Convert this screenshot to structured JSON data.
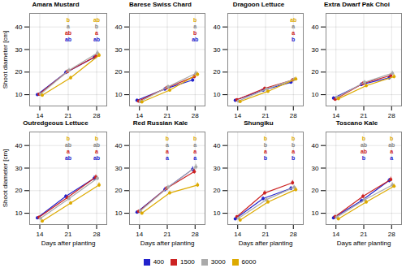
{
  "chart_data": [
    {
      "type": "line",
      "title": "Amara Mustard",
      "x": [
        14,
        21,
        28
      ],
      "series": [
        {
          "name": "400",
          "color": "#2222cc",
          "values": [
            10.0,
            19.8,
            26.5
          ],
          "err": [
            0.5,
            0.8,
            1.0
          ]
        },
        {
          "name": "1500",
          "color": "#cc2222",
          "values": [
            10.2,
            20.2,
            27.0
          ],
          "err": [
            0.5,
            0.8,
            1.0
          ]
        },
        {
          "name": "3000",
          "color": "#aaaaaa",
          "values": [
            10.3,
            20.8,
            28.5
          ],
          "err": [
            0.5,
            0.9,
            1.0
          ]
        },
        {
          "name": "6000",
          "color": "#ddaa00",
          "values": [
            9.8,
            17.5,
            27.5
          ],
          "err": [
            0.5,
            0.8,
            0.9
          ]
        }
      ],
      "annotations": [
        {
          "text": "b",
          "x": 21,
          "color": "#ddaa00"
        },
        {
          "text": "a",
          "x": 21,
          "color": "#888888"
        },
        {
          "text": "ab",
          "x": 21,
          "color": "#cc2222"
        },
        {
          "text": "ab",
          "x": 21,
          "color": "#2222cc"
        },
        {
          "text": "ab",
          "x": 28,
          "color": "#ddaa00"
        },
        {
          "text": "b",
          "x": 28,
          "color": "#888888"
        },
        {
          "text": "a",
          "x": 28,
          "color": "#cc2222"
        },
        {
          "text": "ab",
          "x": 28,
          "color": "#2222cc"
        }
      ],
      "ylabel": "Shoot diameter [cm]",
      "xlim": [
        11.5,
        30.5
      ],
      "xticks": [
        14,
        21,
        28
      ],
      "ylim": [
        5,
        46
      ],
      "yticks": [
        10,
        20,
        30,
        40
      ],
      "grid": true,
      "marker": "circle"
    },
    {
      "type": "line",
      "title": "Barese Swiss Chard",
      "x": [
        14,
        21,
        28
      ],
      "series": [
        {
          "name": "400",
          "color": "#2222cc",
          "values": [
            7.5,
            12.5,
            16.5
          ],
          "err": [
            0.6,
            0.7,
            0.9
          ]
        },
        {
          "name": "1500",
          "color": "#cc2222",
          "values": [
            7.2,
            13.0,
            18.0
          ],
          "err": [
            0.6,
            0.7,
            0.9
          ]
        },
        {
          "name": "3000",
          "color": "#aaaaaa",
          "values": [
            7.0,
            13.5,
            19.5
          ],
          "err": [
            0.6,
            0.8,
            1.0
          ]
        },
        {
          "name": "6000",
          "color": "#ddaa00",
          "values": [
            6.8,
            12.0,
            19.0
          ],
          "err": [
            0.5,
            0.7,
            0.9
          ]
        }
      ],
      "annotations": [
        {
          "text": "b",
          "x": 28,
          "color": "#ddaa00"
        },
        {
          "text": "a",
          "x": 28,
          "color": "#888888"
        },
        {
          "text": "b",
          "x": 28,
          "color": "#cc2222"
        },
        {
          "text": "ab",
          "x": 28,
          "color": "#2222cc"
        }
      ],
      "xlim": [
        11.5,
        30.5
      ],
      "xticks": [
        14,
        21,
        28
      ],
      "ylim": [
        5,
        46
      ],
      "yticks": [
        10,
        20,
        30,
        40
      ],
      "grid": true,
      "marker": "circle"
    },
    {
      "type": "line",
      "title": "Dragoon Lettuce",
      "x": [
        14,
        21,
        28
      ],
      "series": [
        {
          "name": "400",
          "color": "#2222cc",
          "values": [
            7.5,
            12.0,
            15.5
          ],
          "err": [
            0.4,
            0.6,
            0.7
          ]
        },
        {
          "name": "1500",
          "color": "#cc2222",
          "values": [
            7.8,
            12.8,
            16.5
          ],
          "err": [
            0.4,
            0.6,
            0.7
          ]
        },
        {
          "name": "3000",
          "color": "#aaaaaa",
          "values": [
            7.2,
            12.5,
            16.8
          ],
          "err": [
            0.4,
            0.6,
            0.8
          ]
        },
        {
          "name": "6000",
          "color": "#ddaa00",
          "values": [
            7.0,
            11.5,
            17.0
          ],
          "err": [
            0.4,
            0.6,
            0.8
          ]
        }
      ],
      "annotations": [
        {
          "text": "ab",
          "x": 28,
          "color": "#ddaa00"
        },
        {
          "text": "a",
          "x": 28,
          "color": "#888888"
        },
        {
          "text": "a",
          "x": 28,
          "color": "#cc2222"
        },
        {
          "text": "b",
          "x": 28,
          "color": "#2222cc"
        }
      ],
      "xlim": [
        11.5,
        30.5
      ],
      "xticks": [
        14,
        21,
        28
      ],
      "ylim": [
        5,
        46
      ],
      "yticks": [
        10,
        20,
        30,
        40
      ],
      "grid": true,
      "marker": "circle"
    },
    {
      "type": "line",
      "title": "Extra Dwarf Pak Choi",
      "x": [
        14,
        21,
        28
      ],
      "series": [
        {
          "name": "400",
          "color": "#2222cc",
          "values": [
            8.5,
            14.5,
            17.5
          ],
          "err": [
            0.6,
            0.8,
            0.9
          ]
        },
        {
          "name": "1500",
          "color": "#cc2222",
          "values": [
            8.0,
            15.0,
            18.5
          ],
          "err": [
            0.6,
            0.8,
            0.9
          ]
        },
        {
          "name": "3000",
          "color": "#aaaaaa",
          "values": [
            8.8,
            15.5,
            19.5
          ],
          "err": [
            0.6,
            0.8,
            0.9
          ]
        },
        {
          "name": "6000",
          "color": "#ddaa00",
          "values": [
            8.2,
            14.0,
            18.0
          ],
          "err": [
            0.6,
            0.7,
            0.9
          ]
        }
      ],
      "xlim": [
        11.5,
        30.5
      ],
      "xticks": [
        14,
        21,
        28
      ],
      "ylim": [
        5,
        46
      ],
      "yticks": [
        10,
        20,
        30,
        40
      ],
      "grid": true,
      "marker": "circle"
    },
    {
      "type": "line",
      "title": "Outredgeous Lettuce",
      "x": [
        14,
        21,
        28
      ],
      "series": [
        {
          "name": "400",
          "color": "#2222cc",
          "values": [
            8.0,
            17.5,
            25.5
          ],
          "err": [
            0.5,
            0.8,
            1.0
          ]
        },
        {
          "name": "1500",
          "color": "#cc2222",
          "values": [
            8.2,
            17.0,
            26.0
          ],
          "err": [
            0.5,
            0.8,
            1.0
          ]
        },
        {
          "name": "3000",
          "color": "#aaaaaa",
          "values": [
            7.8,
            16.5,
            25.5
          ],
          "err": [
            0.5,
            0.8,
            1.0
          ]
        },
        {
          "name": "6000",
          "color": "#ddaa00",
          "values": [
            6.5,
            14.5,
            22.5
          ],
          "err": [
            0.5,
            0.7,
            1.0
          ]
        }
      ],
      "annotations": [
        {
          "text": "b",
          "x": 21,
          "color": "#ddaa00"
        },
        {
          "text": "ab",
          "x": 21,
          "color": "#888888"
        },
        {
          "text": "a",
          "x": 21,
          "color": "#cc2222"
        },
        {
          "text": "ab",
          "x": 21,
          "color": "#2222cc"
        },
        {
          "text": "b",
          "x": 28,
          "color": "#ddaa00"
        },
        {
          "text": "ab",
          "x": 28,
          "color": "#888888"
        },
        {
          "text": "a",
          "x": 28,
          "color": "#cc2222"
        },
        {
          "text": "ab",
          "x": 28,
          "color": "#2222cc"
        }
      ],
      "ylabel": "Shoot diameter [cm]",
      "xlabel": "Days after planting",
      "xlim": [
        11.5,
        30.5
      ],
      "xticks": [
        14,
        21,
        28
      ],
      "ylim": [
        5,
        46
      ],
      "yticks": [
        10,
        20,
        30,
        40
      ],
      "grid": true,
      "marker": "circle"
    },
    {
      "type": "line",
      "title": "Red Russian Kale",
      "x": [
        14,
        21,
        28
      ],
      "series": [
        {
          "name": "400",
          "color": "#2222cc",
          "values": [
            10.5,
            20.5,
            29.5
          ],
          "err": [
            0.6,
            0.9,
            1.1
          ]
        },
        {
          "name": "1500",
          "color": "#cc2222",
          "values": [
            10.8,
            21.0,
            28.5
          ],
          "err": [
            0.6,
            0.9,
            1.1
          ]
        },
        {
          "name": "3000",
          "color": "#aaaaaa",
          "values": [
            11.0,
            21.5,
            30.5
          ],
          "err": [
            0.6,
            0.9,
            1.2
          ]
        },
        {
          "name": "6000",
          "color": "#ddaa00",
          "values": [
            10.0,
            19.0,
            22.5
          ],
          "err": [
            0.6,
            0.8,
            1.0
          ]
        }
      ],
      "annotations": [
        {
          "text": "b",
          "x": 21,
          "color": "#ddaa00"
        },
        {
          "text": "a",
          "x": 21,
          "color": "#888888"
        },
        {
          "text": "a",
          "x": 21,
          "color": "#cc2222"
        },
        {
          "text": "a",
          "x": 21,
          "color": "#2222cc"
        },
        {
          "text": "b",
          "x": 28,
          "color": "#ddaa00"
        },
        {
          "text": "a",
          "x": 28,
          "color": "#888888"
        },
        {
          "text": "a",
          "x": 28,
          "color": "#cc2222"
        },
        {
          "text": "a",
          "x": 28,
          "color": "#2222cc"
        }
      ],
      "xlabel": "Days after planting",
      "xlim": [
        11.5,
        30.5
      ],
      "xticks": [
        14,
        21,
        28
      ],
      "ylim": [
        5,
        46
      ],
      "yticks": [
        10,
        20,
        30,
        40
      ],
      "grid": true,
      "marker": "circle"
    },
    {
      "type": "line",
      "title": "Shungiku",
      "x": [
        14,
        21,
        28
      ],
      "series": [
        {
          "name": "400",
          "color": "#2222cc",
          "values": [
            7.5,
            16.5,
            21.0
          ],
          "err": [
            0.5,
            0.8,
            0.9
          ]
        },
        {
          "name": "1500",
          "color": "#cc2222",
          "values": [
            8.5,
            19.0,
            23.5
          ],
          "err": [
            0.5,
            0.9,
            1.0
          ]
        },
        {
          "name": "3000",
          "color": "#aaaaaa",
          "values": [
            7.8,
            16.0,
            21.5
          ],
          "err": [
            0.5,
            0.8,
            0.9
          ]
        },
        {
          "name": "6000",
          "color": "#ddaa00",
          "values": [
            7.0,
            15.0,
            20.5
          ],
          "err": [
            0.5,
            0.7,
            0.9
          ]
        }
      ],
      "annotations": [
        {
          "text": "b",
          "x": 21,
          "color": "#ddaa00"
        },
        {
          "text": "b",
          "x": 21,
          "color": "#888888"
        },
        {
          "text": "a",
          "x": 21,
          "color": "#cc2222"
        },
        {
          "text": "b",
          "x": 21,
          "color": "#2222cc"
        },
        {
          "text": "b",
          "x": 28,
          "color": "#ddaa00"
        },
        {
          "text": "b",
          "x": 28,
          "color": "#888888"
        },
        {
          "text": "a",
          "x": 28,
          "color": "#cc2222"
        },
        {
          "text": "b",
          "x": 28,
          "color": "#2222cc"
        }
      ],
      "xlabel": "Days after planting",
      "xlim": [
        11.5,
        30.5
      ],
      "xticks": [
        14,
        21,
        28
      ],
      "ylim": [
        5,
        46
      ],
      "yticks": [
        10,
        20,
        30,
        40
      ],
      "grid": true,
      "marker": "circle"
    },
    {
      "type": "line",
      "title": "Toscano Kale",
      "x": [
        14,
        21,
        28
      ],
      "series": [
        {
          "name": "400",
          "color": "#2222cc",
          "values": [
            8.0,
            15.5,
            24.5
          ],
          "err": [
            0.7,
            0.9,
            1.0
          ]
        },
        {
          "name": "1500",
          "color": "#cc2222",
          "values": [
            8.5,
            17.5,
            25.0
          ],
          "err": [
            0.7,
            0.9,
            1.0
          ]
        },
        {
          "name": "3000",
          "color": "#aaaaaa",
          "values": [
            8.2,
            16.0,
            22.5
          ],
          "err": [
            0.7,
            0.9,
            1.0
          ]
        },
        {
          "name": "6000",
          "color": "#ddaa00",
          "values": [
            7.5,
            15.0,
            22.0
          ],
          "err": [
            0.6,
            0.8,
            0.9
          ]
        }
      ],
      "annotations": [
        {
          "text": "b",
          "x": 21,
          "color": "#ddaa00"
        },
        {
          "text": "ab",
          "x": 21,
          "color": "#888888"
        },
        {
          "text": "ab",
          "x": 21,
          "color": "#cc2222"
        },
        {
          "text": "b",
          "x": 21,
          "color": "#2222cc"
        },
        {
          "text": "b",
          "x": 28,
          "color": "#ddaa00"
        },
        {
          "text": "ab",
          "x": 28,
          "color": "#888888"
        },
        {
          "text": "a",
          "x": 28,
          "color": "#cc2222"
        },
        {
          "text": "a",
          "x": 28,
          "color": "#2222cc"
        }
      ],
      "xlabel": "Days after planting",
      "xlim": [
        11.5,
        30.5
      ],
      "xticks": [
        14,
        21,
        28
      ],
      "ylim": [
        5,
        46
      ],
      "yticks": [
        10,
        20,
        30,
        40
      ],
      "grid": true,
      "marker": "circle",
      "legend": "bottom"
    }
  ]
}
